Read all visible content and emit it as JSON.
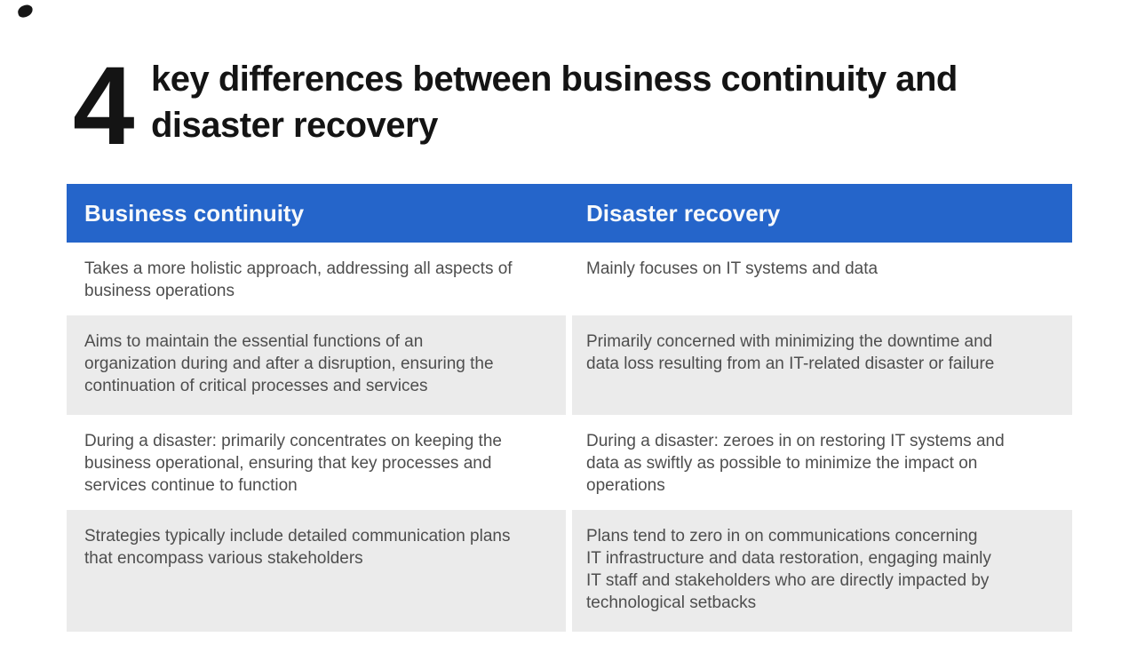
{
  "title": {
    "number": "4",
    "text": "key differences between business continuity and\ndisaster recovery"
  },
  "table": {
    "header": {
      "business_continuity": "Business continuity",
      "disaster_recovery": "Disaster recovery"
    },
    "colors": {
      "header_bg": "#2565CA",
      "header_text": "#F7F9FB",
      "alt_row_bg": "#EBEBEB",
      "body_text": "#4E4E4E",
      "title_text": "#141414"
    },
    "rows": [
      {
        "business_continuity": "Takes a more holistic approach, addressing all aspects of\nbusiness operations",
        "disaster_recovery": "Mainly focuses on IT systems and data"
      },
      {
        "business_continuity": "Aims to maintain the essential functions of an\norganization during and after a disruption, ensuring the\ncontinuation of critical processes and services",
        "disaster_recovery": "Primarily concerned with minimizing the downtime and\ndata loss resulting from an IT-related disaster or failure"
      },
      {
        "business_continuity": "During a disaster: primarily concentrates on keeping the\nbusiness operational, ensuring that key processes and\nservices continue to function",
        "disaster_recovery": "During a disaster: zeroes in on restoring IT systems and\ndata as swiftly as possible to minimize the impact on\noperations"
      },
      {
        "business_continuity": "Strategies typically include detailed communication plans\nthat encompass various stakeholders",
        "disaster_recovery": "Plans tend to zero in on communications concerning\nIT infrastructure and data restoration, engaging mainly\nIT staff and stakeholders who are directly impacted by\ntechnological setbacks"
      }
    ]
  }
}
